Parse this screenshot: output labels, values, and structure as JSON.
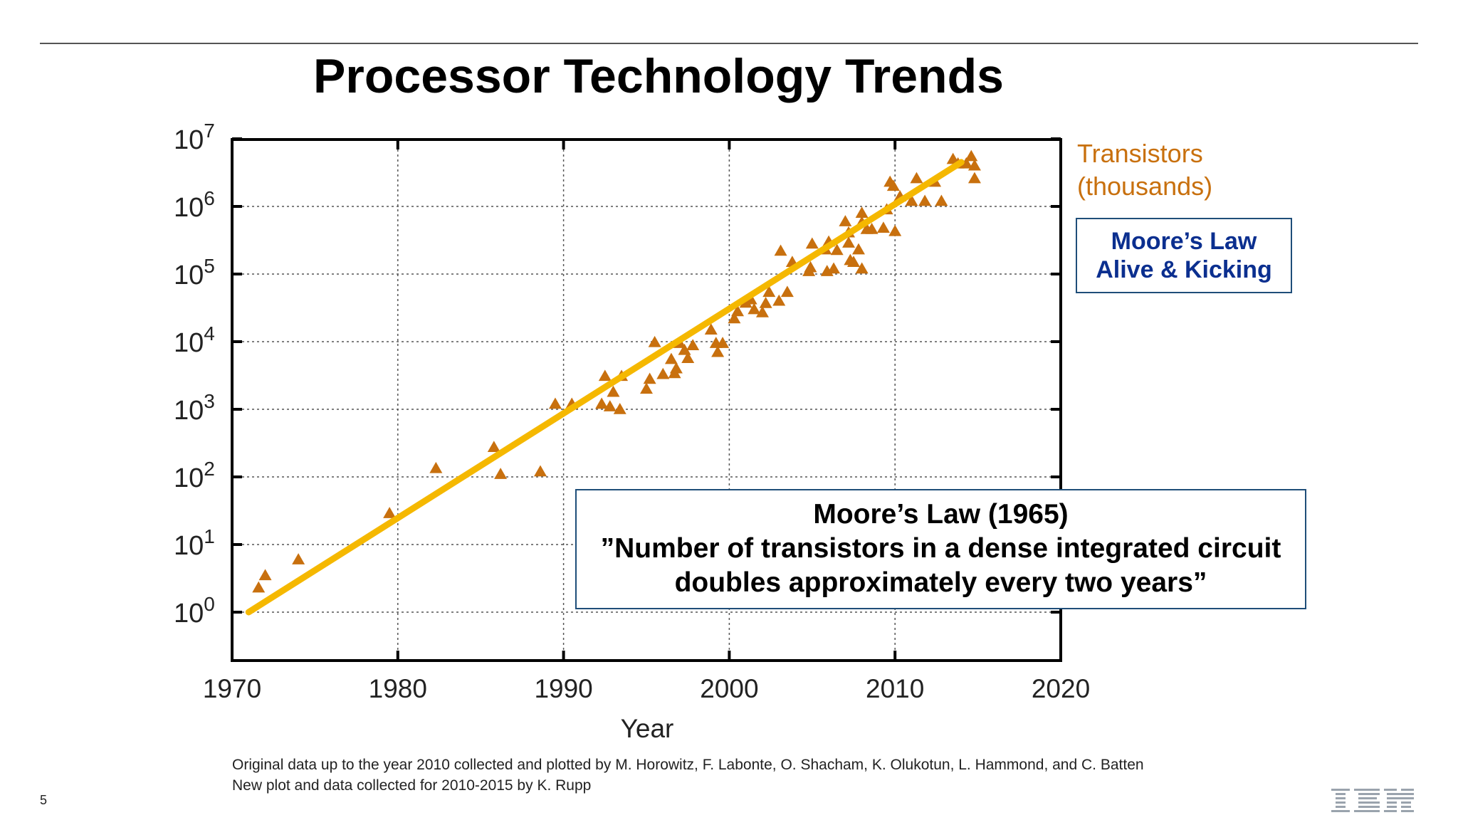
{
  "slide": {
    "title": "Processor Technology Trends",
    "page_number": "5",
    "logo": "IBM"
  },
  "callouts": {
    "moore_status": {
      "line1": "Moore’s Law",
      "line2": "Alive & Kicking"
    },
    "moore_definition": {
      "line1": "Moore’s Law (1965)",
      "line2": "”Number of transistors in a dense integrated circuit",
      "line3": "doubles approximately every two years”"
    }
  },
  "credits": {
    "line1": "Original data up to the year 2010 collected and plotted by M. Horowitz, F. Labonte, O. Shacham, K. Olukotun, L. Hammond, and C. Batten",
    "line2": "New plot and data collected for 2010-2015 by K. Rupp"
  },
  "colors": {
    "marker": "#c8700e",
    "trend": "#f5b800",
    "series_label": "#c8700e",
    "callout_border": "#1f4e79",
    "callout_text": "#0b2f8f"
  },
  "chart_data": {
    "type": "scatter",
    "title": "",
    "xlabel": "Year",
    "ylabel": "",
    "x_ticks": [
      "1970",
      "1980",
      "1990",
      "2000",
      "2010",
      "2020"
    ],
    "y_ticks": [
      "10^0",
      "10^1",
      "10^2",
      "10^3",
      "10^4",
      "10^5",
      "10^6",
      "10^7"
    ],
    "xlim": [
      1970,
      2020
    ],
    "ylim": [
      0.1,
      10000000
    ],
    "log_y": true,
    "grid": true,
    "legend_position": "top-right",
    "series": [
      {
        "name": "Transistors (thousands)",
        "marker": "triangle",
        "points": [
          [
            1971.6,
            2.3
          ],
          [
            1972.0,
            3.5
          ],
          [
            1974.0,
            6
          ],
          [
            1979.5,
            29
          ],
          [
            1982.3,
            134
          ],
          [
            1985.8,
            275
          ],
          [
            1986.2,
            110
          ],
          [
            1988.6,
            120
          ],
          [
            1989.5,
            1200
          ],
          [
            1990.5,
            1200
          ],
          [
            1992.5,
            3100
          ],
          [
            1992.3,
            1200
          ],
          [
            1992.8,
            1100
          ],
          [
            1993.0,
            1800
          ],
          [
            1993.5,
            3100
          ],
          [
            1993.4,
            1000
          ],
          [
            1995.0,
            2000
          ],
          [
            1995.2,
            2800
          ],
          [
            1995.5,
            9800
          ],
          [
            1996.0,
            3300
          ],
          [
            1996.5,
            5500
          ],
          [
            1996.8,
            4000
          ],
          [
            1996.7,
            3400
          ],
          [
            1997.0,
            9500
          ],
          [
            1997.3,
            7500
          ],
          [
            1997.5,
            5700
          ],
          [
            1997.8,
            8800
          ],
          [
            1998.9,
            15000
          ],
          [
            1999.2,
            9500
          ],
          [
            1999.3,
            7000
          ],
          [
            1999.6,
            9500
          ],
          [
            2000.3,
            22000
          ],
          [
            2000.5,
            28000
          ],
          [
            2001.0,
            37500
          ],
          [
            2001.3,
            42000
          ],
          [
            2001.5,
            30000
          ],
          [
            2002.0,
            27000
          ],
          [
            2002.2,
            37000
          ],
          [
            2002.4,
            54000
          ],
          [
            2003.0,
            40000
          ],
          [
            2003.1,
            220000
          ],
          [
            2003.5,
            54000
          ],
          [
            2003.8,
            150000
          ],
          [
            2004.8,
            110000
          ],
          [
            2004.9,
            125000
          ],
          [
            2005.0,
            280000
          ],
          [
            2005.8,
            230000
          ],
          [
            2005.9,
            110000
          ],
          [
            2006.0,
            300000
          ],
          [
            2006.3,
            120000
          ],
          [
            2006.5,
            225000
          ],
          [
            2007.0,
            600000
          ],
          [
            2007.2,
            410000
          ],
          [
            2007.2,
            290000
          ],
          [
            2007.3,
            160000
          ],
          [
            2007.5,
            150000
          ],
          [
            2007.8,
            230000
          ],
          [
            2008.0,
            800000
          ],
          [
            2008.0,
            580000
          ],
          [
            2008.0,
            120000
          ],
          [
            2008.3,
            460000
          ],
          [
            2008.6,
            460000
          ],
          [
            2009.3,
            480000
          ],
          [
            2009.5,
            900000
          ],
          [
            2009.7,
            2300000
          ],
          [
            2009.9,
            2000000
          ],
          [
            2010.0,
            430000
          ],
          [
            2010.3,
            1400000
          ],
          [
            2011.0,
            1200000
          ],
          [
            2011.3,
            2600000
          ],
          [
            2011.8,
            1200000
          ],
          [
            2012.4,
            2300000
          ],
          [
            2012.8,
            1200000
          ],
          [
            2013.5,
            5000000
          ],
          [
            2013.8,
            4300000
          ],
          [
            2014.3,
            4300000
          ],
          [
            2014.6,
            5500000
          ],
          [
            2014.8,
            4000000
          ],
          [
            2014.8,
            2600000
          ]
        ]
      }
    ],
    "trend_line": {
      "from": [
        1971,
        1
      ],
      "to": [
        2014,
        4500000
      ]
    }
  }
}
